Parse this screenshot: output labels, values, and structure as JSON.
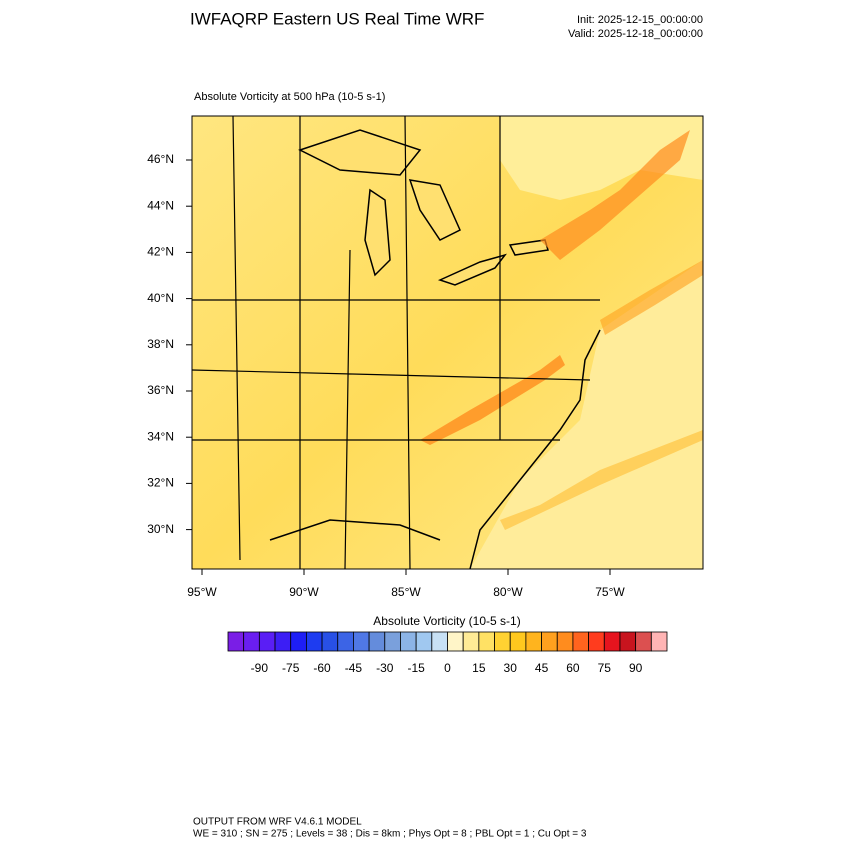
{
  "header": {
    "title": "IWFAQRP Eastern US Real Time WRF",
    "init": "Init: 2025-12-15_00:00:00",
    "valid": "Valid: 2025-12-18_00:00:00"
  },
  "map": {
    "title": "Absolute Vorticity at 500 hPa   (10-5 s-1)",
    "lat_labels": [
      "46°N",
      "44°N",
      "42°N",
      "40°N",
      "38°N",
      "36°N",
      "34°N",
      "32°N",
      "30°N"
    ],
    "lon_labels": [
      "95°W",
      "90°W",
      "85°W",
      "80°W",
      "75°W"
    ]
  },
  "colorbar": {
    "title": "Absolute Vorticity  (10-5 s-1)",
    "labels": [
      "-90",
      "-75",
      "-60",
      "-45",
      "-30",
      "-15",
      "0",
      "15",
      "30",
      "45",
      "60",
      "75",
      "90"
    ],
    "colors": [
      "#7a1ee6",
      "#6a1ef0",
      "#5a1ef5",
      "#3c1ef5",
      "#1e1ef5",
      "#1e3cf0",
      "#2850e6",
      "#3c64e6",
      "#5078e6",
      "#648cdc",
      "#7aa0dc",
      "#8cb4e6",
      "#a0c8f0",
      "#c8e1f5",
      "#fff5c8",
      "#ffeb96",
      "#ffe164",
      "#ffd232",
      "#ffc81e",
      "#ffb41e",
      "#ffa01e",
      "#ff8c1e",
      "#ff641e",
      "#ff3c1e",
      "#e6141e",
      "#c8141e",
      "#dc5050",
      "#ffb4b4"
    ]
  },
  "footer": {
    "line1": "OUTPUT FROM WRF V4.6.1 MODEL",
    "line2": "WE = 310 ; SN = 275 ; Levels = 38 ; Dis = 8km ; Phys Opt = 8 ; PBL Opt = 1 ; Cu Opt = 3"
  }
}
